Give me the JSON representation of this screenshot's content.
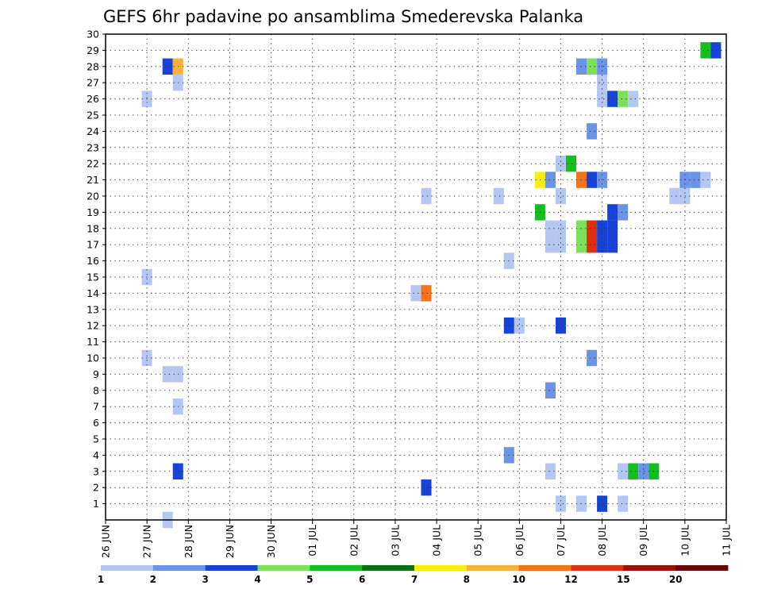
{
  "chart_data": {
    "type": "heatmap",
    "title": "GEFS 6hr padavine po ansamblima Smederevska Palanka",
    "xlabel": "",
    "ylabel": "",
    "x_tick_labels": [
      "26 JUN",
      "27 JUN",
      "28 JUN",
      "29 JUN",
      "30 JUN",
      "01 JUL",
      "02 JUL",
      "03 JUL",
      "04 JUL",
      "05 JUL",
      "06 JUL",
      "07 JUL",
      "08 JUL",
      "09 JUL",
      "10 JUL",
      "11 JUL"
    ],
    "y_tick_labels": [
      "1",
      "2",
      "3",
      "4",
      "5",
      "6",
      "7",
      "8",
      "9",
      "10",
      "11",
      "12",
      "13",
      "14",
      "15",
      "16",
      "17",
      "18",
      "19",
      "20",
      "21",
      "22",
      "23",
      "24",
      "25",
      "26",
      "27",
      "28",
      "29",
      "30"
    ],
    "x_range_days": [
      0,
      15
    ],
    "y_range_members": [
      0,
      30
    ],
    "time_step_days": 0.25,
    "grid": true,
    "colorbar": {
      "labels": [
        "1",
        "2",
        "3",
        "4",
        "5",
        "6",
        "7",
        "8",
        "10",
        "12",
        "15",
        "20"
      ],
      "colors": [
        "#b4c7f3",
        "#6b93e8",
        "#1743d8",
        "#7de05b",
        "#14be1e",
        "#0b6e12",
        "#f7f00f",
        "#fcb23a",
        "#f4731b",
        "#dc3011",
        "#9c1208",
        "#68060a"
      ]
    },
    "points": [
      {
        "day": 1.0,
        "member": 10,
        "cls": 0
      },
      {
        "day": 1.0,
        "member": 15,
        "cls": 0
      },
      {
        "day": 1.0,
        "member": 26,
        "cls": 0
      },
      {
        "day": 1.5,
        "member": 0,
        "cls": 0
      },
      {
        "day": 1.5,
        "member": 9,
        "cls": 0
      },
      {
        "day": 1.5,
        "member": 28,
        "cls": 2
      },
      {
        "day": 1.75,
        "member": 3,
        "cls": 2
      },
      {
        "day": 1.75,
        "member": 7,
        "cls": 0
      },
      {
        "day": 1.75,
        "member": 9,
        "cls": 0
      },
      {
        "day": 1.75,
        "member": 27,
        "cls": 0
      },
      {
        "day": 1.75,
        "member": 28,
        "cls": 7
      },
      {
        "day": 7.5,
        "member": 14,
        "cls": 0
      },
      {
        "day": 7.75,
        "member": 2,
        "cls": 2
      },
      {
        "day": 7.75,
        "member": 14,
        "cls": 8
      },
      {
        "day": 7.75,
        "member": 20,
        "cls": 0
      },
      {
        "day": 9.5,
        "member": 20,
        "cls": 0
      },
      {
        "day": 9.75,
        "member": 4,
        "cls": 1
      },
      {
        "day": 9.75,
        "member": 12,
        "cls": 2
      },
      {
        "day": 9.75,
        "member": 16,
        "cls": 0
      },
      {
        "day": 10.0,
        "member": 12,
        "cls": 0
      },
      {
        "day": 10.5,
        "member": 19,
        "cls": 4
      },
      {
        "day": 10.5,
        "member": 21,
        "cls": 6
      },
      {
        "day": 10.75,
        "member": 3,
        "cls": 0
      },
      {
        "day": 10.75,
        "member": 8,
        "cls": 1
      },
      {
        "day": 10.75,
        "member": 17,
        "cls": 0
      },
      {
        "day": 10.75,
        "member": 18,
        "cls": 0
      },
      {
        "day": 10.75,
        "member": 21,
        "cls": 1
      },
      {
        "day": 11.0,
        "member": 1,
        "cls": 0
      },
      {
        "day": 11.0,
        "member": 12,
        "cls": 2
      },
      {
        "day": 11.0,
        "member": 17,
        "cls": 0
      },
      {
        "day": 11.0,
        "member": 18,
        "cls": 0
      },
      {
        "day": 11.0,
        "member": 20,
        "cls": 0
      },
      {
        "day": 11.0,
        "member": 22,
        "cls": 0
      },
      {
        "day": 11.25,
        "member": 22,
        "cls": 4
      },
      {
        "day": 11.5,
        "member": 1,
        "cls": 0
      },
      {
        "day": 11.5,
        "member": 17,
        "cls": 3
      },
      {
        "day": 11.5,
        "member": 18,
        "cls": 3
      },
      {
        "day": 11.5,
        "member": 21,
        "cls": 8
      },
      {
        "day": 11.5,
        "member": 28,
        "cls": 1
      },
      {
        "day": 11.75,
        "member": 10,
        "cls": 1
      },
      {
        "day": 11.75,
        "member": 17,
        "cls": 9
      },
      {
        "day": 11.75,
        "member": 18,
        "cls": 9
      },
      {
        "day": 11.75,
        "member": 21,
        "cls": 2
      },
      {
        "day": 11.75,
        "member": 24,
        "cls": 1
      },
      {
        "day": 11.75,
        "member": 28,
        "cls": 3
      },
      {
        "day": 12.0,
        "member": 1,
        "cls": 2
      },
      {
        "day": 12.0,
        "member": 17,
        "cls": 2
      },
      {
        "day": 12.0,
        "member": 18,
        "cls": 2
      },
      {
        "day": 12.0,
        "member": 21,
        "cls": 1
      },
      {
        "day": 12.0,
        "member": 26,
        "cls": 0
      },
      {
        "day": 12.0,
        "member": 27,
        "cls": 0
      },
      {
        "day": 12.0,
        "member": 28,
        "cls": 1
      },
      {
        "day": 12.25,
        "member": 17,
        "cls": 2
      },
      {
        "day": 12.25,
        "member": 18,
        "cls": 2
      },
      {
        "day": 12.25,
        "member": 19,
        "cls": 2
      },
      {
        "day": 12.25,
        "member": 26,
        "cls": 2
      },
      {
        "day": 12.5,
        "member": 1,
        "cls": 0
      },
      {
        "day": 12.5,
        "member": 3,
        "cls": 0
      },
      {
        "day": 12.5,
        "member": 19,
        "cls": 1
      },
      {
        "day": 12.5,
        "member": 26,
        "cls": 3
      },
      {
        "day": 12.75,
        "member": 3,
        "cls": 4
      },
      {
        "day": 12.75,
        "member": 26,
        "cls": 0
      },
      {
        "day": 13.0,
        "member": 3,
        "cls": 1
      },
      {
        "day": 13.25,
        "member": 3,
        "cls": 4
      },
      {
        "day": 13.75,
        "member": 20,
        "cls": 0
      },
      {
        "day": 14.0,
        "member": 20,
        "cls": 0
      },
      {
        "day": 14.0,
        "member": 21,
        "cls": 1
      },
      {
        "day": 14.25,
        "member": 21,
        "cls": 1
      },
      {
        "day": 14.5,
        "member": 21,
        "cls": 0
      },
      {
        "day": 14.5,
        "member": 29,
        "cls": 4
      },
      {
        "day": 14.75,
        "member": 29,
        "cls": 2
      }
    ]
  }
}
